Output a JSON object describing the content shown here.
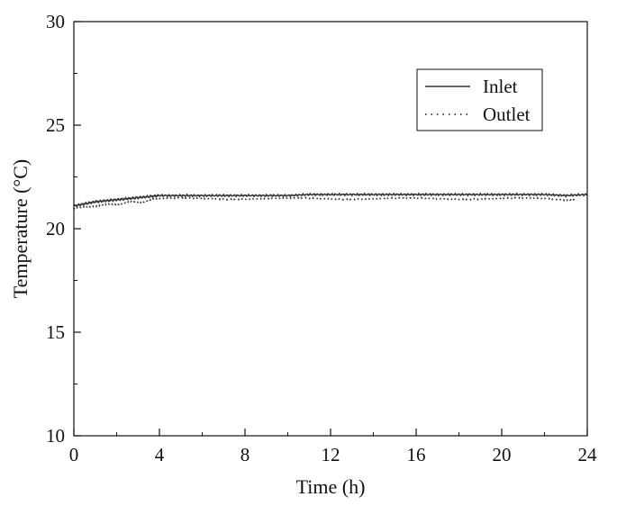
{
  "chart_data": {
    "type": "line",
    "title": "",
    "xlabel": "Time (h)",
    "ylabel": "Temperature (°C)",
    "xlim": [
      0,
      24
    ],
    "ylim": [
      10,
      30
    ],
    "x_ticks": [
      0,
      4,
      8,
      12,
      16,
      20,
      24
    ],
    "x_tick_labels": [
      "0",
      "4",
      "8",
      "12",
      "16",
      "20",
      "24"
    ],
    "y_ticks": [
      10,
      15,
      20,
      25,
      30
    ],
    "y_tick_labels": [
      "10",
      "15",
      "20",
      "25",
      "30"
    ],
    "grid": false,
    "legend_position": "top-right",
    "series": [
      {
        "name": "Inlet",
        "style": "solid",
        "color": "#333333",
        "x": [
          0,
          0.5,
          1,
          1.5,
          2,
          2.5,
          3,
          3.5,
          4,
          5,
          6,
          7,
          8,
          9,
          10,
          11,
          12,
          13,
          14,
          15,
          16,
          17,
          18,
          19,
          20,
          21,
          22,
          23,
          24
        ],
        "values": [
          21.1,
          21.2,
          21.3,
          21.35,
          21.4,
          21.45,
          21.5,
          21.55,
          21.6,
          21.6,
          21.6,
          21.6,
          21.6,
          21.6,
          21.6,
          21.65,
          21.65,
          21.65,
          21.65,
          21.65,
          21.65,
          21.65,
          21.65,
          21.65,
          21.65,
          21.65,
          21.65,
          21.6,
          21.65
        ]
      },
      {
        "name": "Outlet",
        "style": "dotted",
        "color": "#333333",
        "x": [
          0,
          0.5,
          1,
          1.5,
          2,
          2.5,
          3,
          3.5,
          4,
          5,
          6,
          7,
          8,
          9,
          10,
          11,
          12,
          13,
          14,
          15,
          16,
          17,
          18,
          19,
          20,
          21,
          22,
          23,
          23.5
        ],
        "values": [
          20.95,
          21.05,
          21.1,
          21.15,
          21.2,
          21.25,
          21.3,
          21.35,
          21.45,
          21.45,
          21.45,
          21.45,
          21.45,
          21.45,
          21.45,
          21.45,
          21.45,
          21.45,
          21.45,
          21.45,
          21.45,
          21.45,
          21.45,
          21.45,
          21.45,
          21.45,
          21.45,
          21.4,
          21.35
        ]
      }
    ]
  }
}
